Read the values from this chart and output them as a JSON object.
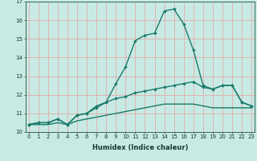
{
  "xlabel": "Humidex (Indice chaleur)",
  "background_color": "#c8eae4",
  "grid_color": "#e8a0a0",
  "line_color": "#1a7a6a",
  "x_values": [
    0,
    1,
    2,
    3,
    4,
    5,
    6,
    7,
    8,
    9,
    10,
    11,
    12,
    13,
    14,
    15,
    16,
    17,
    18,
    19,
    20,
    21,
    22,
    23
  ],
  "line1": [
    10.4,
    10.5,
    10.5,
    10.7,
    10.4,
    10.9,
    11.0,
    11.3,
    11.6,
    12.6,
    13.5,
    14.9,
    15.2,
    15.3,
    16.5,
    16.6,
    15.8,
    14.4,
    12.5,
    12.3,
    12.5,
    12.5,
    11.6,
    11.4
  ],
  "line2": [
    10.4,
    10.5,
    10.5,
    10.7,
    10.4,
    10.9,
    11.0,
    11.4,
    11.6,
    11.8,
    11.9,
    12.1,
    12.2,
    12.3,
    12.4,
    12.5,
    12.6,
    12.7,
    12.4,
    12.3,
    12.5,
    12.5,
    11.6,
    11.4
  ],
  "line3": [
    10.4,
    10.4,
    10.4,
    10.5,
    10.4,
    10.6,
    10.7,
    10.8,
    10.9,
    11.0,
    11.1,
    11.2,
    11.3,
    11.4,
    11.5,
    11.5,
    11.5,
    11.5,
    11.4,
    11.3,
    11.3,
    11.3,
    11.3,
    11.3
  ],
  "ylim_min": 10.0,
  "ylim_max": 17.0,
  "xlim_min": 0,
  "xlim_max": 23,
  "yticks": [
    10,
    11,
    12,
    13,
    14,
    15,
    16,
    17
  ],
  "xticks": [
    0,
    1,
    2,
    3,
    4,
    5,
    6,
    7,
    8,
    9,
    10,
    11,
    12,
    13,
    14,
    15,
    16,
    17,
    18,
    19,
    20,
    21,
    22,
    23
  ],
  "xlabel_fontsize": 6.0,
  "tick_fontsize": 5.0,
  "line_width": 1.0,
  "marker_size": 2.2
}
